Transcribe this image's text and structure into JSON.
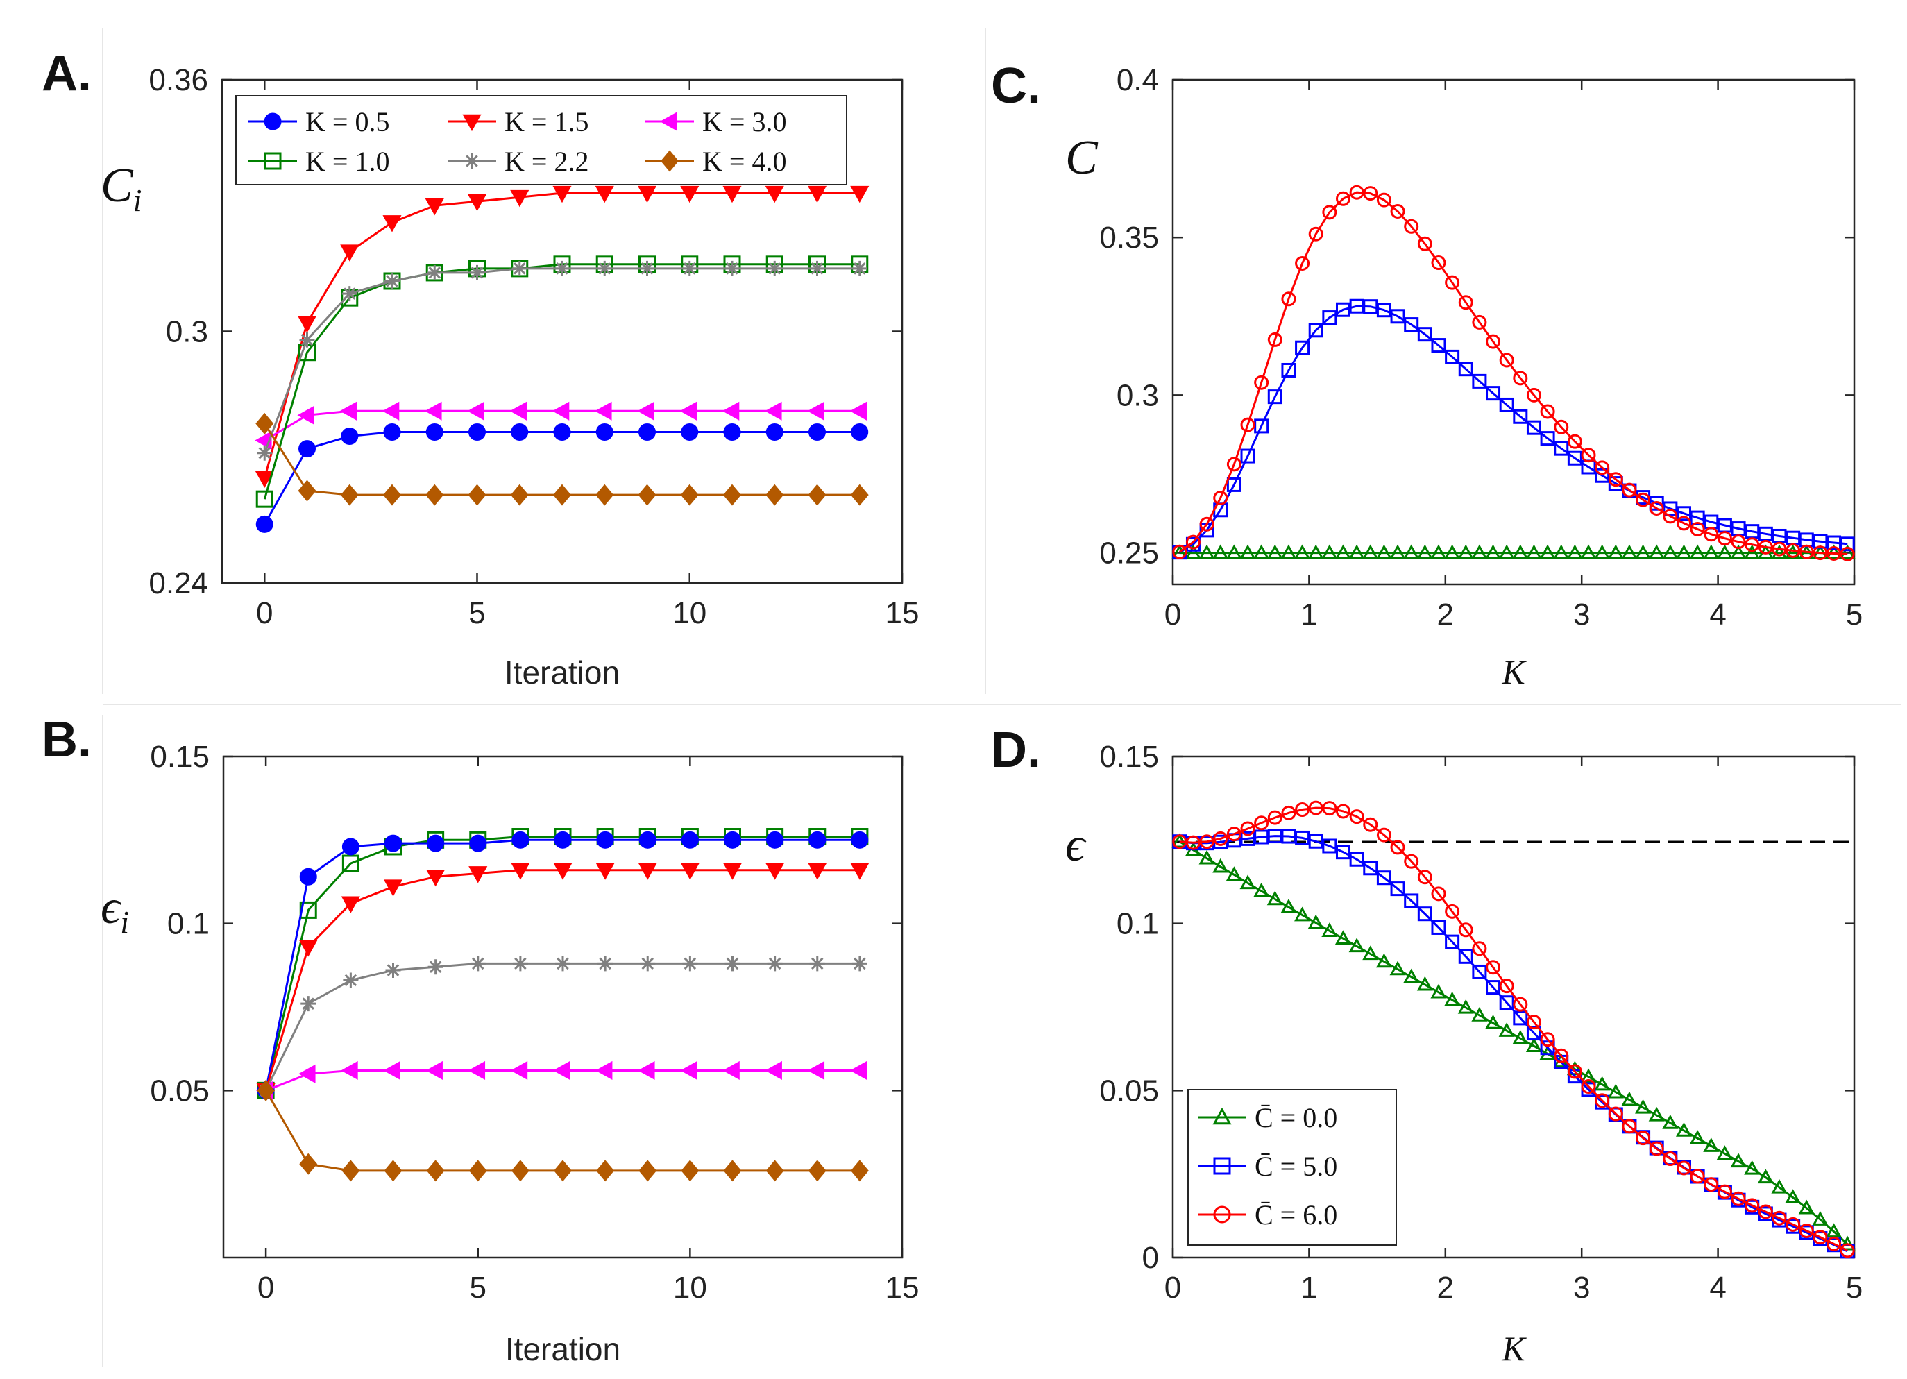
{
  "panels": [
    {
      "letter": "A.",
      "ylabel_base": "C",
      "ylabel_sub": "i",
      "xlabel": "Iteration",
      "xticks": [
        "0",
        "5",
        "10",
        "15"
      ],
      "yticks": [
        "0.24",
        "0.3",
        "0.36"
      ],
      "legend_labels": [
        "K = 0.5",
        "K = 1.5",
        "K = 3.0",
        "K = 1.0",
        "K = 2.2",
        "K = 4.0"
      ]
    },
    {
      "letter": "B.",
      "ylabel_base": "ϵ",
      "ylabel_sub": "i",
      "xlabel": "Iteration",
      "xticks": [
        "0",
        "5",
        "10",
        "15"
      ],
      "yticks": [
        "0.05",
        "0.1",
        "0.15"
      ]
    },
    {
      "letter": "C.",
      "ylabel": "C",
      "xlabel": "K",
      "xticks": [
        "0",
        "1",
        "2",
        "3",
        "4",
        "5"
      ],
      "yticks": [
        "0.25",
        "0.3",
        "0.35",
        "0.4"
      ]
    },
    {
      "letter": "D.",
      "ylabel": "ϵ",
      "xlabel": "K",
      "xticks": [
        "0",
        "1",
        "2",
        "3",
        "4",
        "5"
      ],
      "yticks": [
        "0",
        "0.05",
        "0.1",
        "0.15"
      ],
      "legend_labels": [
        "C̄ = 0.0",
        "C̄ = 5.0",
        "C̄ = 6.0"
      ]
    }
  ],
  "chart_data": [
    {
      "panel": "A",
      "type": "line",
      "xlabel": "Iteration",
      "ylabel": "C_i",
      "xlim": [
        -1,
        15
      ],
      "ylim": [
        0.24,
        0.36
      ],
      "x": [
        0,
        1,
        2,
        3,
        4,
        5,
        6,
        7,
        8,
        9,
        10,
        11,
        12,
        13,
        14
      ],
      "series": [
        {
          "name": "K = 0.5",
          "color": "#0000ff",
          "marker": "circle-filled",
          "values": [
            0.254,
            0.272,
            0.275,
            0.276,
            0.276,
            0.276,
            0.276,
            0.276,
            0.276,
            0.276,
            0.276,
            0.276,
            0.276,
            0.276,
            0.276
          ]
        },
        {
          "name": "K = 1.5",
          "color": "#ff0000",
          "marker": "triangle-down-filled",
          "values": [
            0.265,
            0.302,
            0.319,
            0.326,
            0.33,
            0.331,
            0.332,
            0.333,
            0.333,
            0.333,
            0.333,
            0.333,
            0.333,
            0.333,
            0.333
          ]
        },
        {
          "name": "K = 3.0",
          "color": "#ff00ff",
          "marker": "triangle-left-filled",
          "values": [
            0.274,
            0.28,
            0.281,
            0.281,
            0.281,
            0.281,
            0.281,
            0.281,
            0.281,
            0.281,
            0.281,
            0.281,
            0.281,
            0.281,
            0.281
          ]
        },
        {
          "name": "K = 1.0",
          "color": "#008000",
          "marker": "square-open",
          "values": [
            0.26,
            0.295,
            0.308,
            0.312,
            0.314,
            0.315,
            0.315,
            0.316,
            0.316,
            0.316,
            0.316,
            0.316,
            0.316,
            0.316,
            0.316
          ]
        },
        {
          "name": "K = 2.2",
          "color": "#808080",
          "marker": "star",
          "values": [
            0.271,
            0.298,
            0.309,
            0.312,
            0.314,
            0.314,
            0.315,
            0.315,
            0.315,
            0.315,
            0.315,
            0.315,
            0.315,
            0.315,
            0.315
          ]
        },
        {
          "name": "K = 4.0",
          "color": "#b35900",
          "marker": "diamond-filled",
          "values": [
            0.278,
            0.262,
            0.261,
            0.261,
            0.261,
            0.261,
            0.261,
            0.261,
            0.261,
            0.261,
            0.261,
            0.261,
            0.261,
            0.261,
            0.261
          ]
        }
      ]
    },
    {
      "panel": "B",
      "type": "line",
      "xlabel": "Iteration",
      "ylabel": "ϵ_i",
      "xlim": [
        -1,
        15
      ],
      "ylim": [
        0,
        0.15
      ],
      "x": [
        0,
        1,
        2,
        3,
        4,
        5,
        6,
        7,
        8,
        9,
        10,
        11,
        12,
        13,
        14
      ],
      "series": [
        {
          "name": "K = 1.0",
          "color": "#008000",
          "marker": "square-open",
          "values": [
            0.05,
            0.104,
            0.118,
            0.123,
            0.125,
            0.125,
            0.126,
            0.126,
            0.126,
            0.126,
            0.126,
            0.126,
            0.126,
            0.126,
            0.126
          ]
        },
        {
          "name": "K = 0.5",
          "color": "#0000ff",
          "marker": "circle-filled",
          "values": [
            0.05,
            0.114,
            0.123,
            0.124,
            0.124,
            0.124,
            0.125,
            0.125,
            0.125,
            0.125,
            0.125,
            0.125,
            0.125,
            0.125,
            0.125
          ]
        },
        {
          "name": "K = 1.5",
          "color": "#ff0000",
          "marker": "triangle-down-filled",
          "values": [
            0.05,
            0.093,
            0.106,
            0.111,
            0.114,
            0.115,
            0.116,
            0.116,
            0.116,
            0.116,
            0.116,
            0.116,
            0.116,
            0.116,
            0.116
          ]
        },
        {
          "name": "K = 2.2",
          "color": "#808080",
          "marker": "star",
          "values": [
            0.05,
            0.076,
            0.083,
            0.086,
            0.087,
            0.088,
            0.088,
            0.088,
            0.088,
            0.088,
            0.088,
            0.088,
            0.088,
            0.088,
            0.088
          ]
        },
        {
          "name": "K = 3.0",
          "color": "#ff00ff",
          "marker": "triangle-left-filled",
          "values": [
            0.05,
            0.055,
            0.056,
            0.056,
            0.056,
            0.056,
            0.056,
            0.056,
            0.056,
            0.056,
            0.056,
            0.056,
            0.056,
            0.056,
            0.056
          ]
        },
        {
          "name": "K = 4.0",
          "color": "#b35900",
          "marker": "diamond-filled",
          "values": [
            0.05,
            0.028,
            0.026,
            0.026,
            0.026,
            0.026,
            0.026,
            0.026,
            0.026,
            0.026,
            0.026,
            0.026,
            0.026,
            0.026,
            0.026
          ]
        }
      ]
    },
    {
      "panel": "C",
      "type": "line",
      "xlabel": "K",
      "ylabel": "C",
      "xlim": [
        0,
        5
      ],
      "ylim": [
        0.24,
        0.4
      ],
      "x_start": 0.05,
      "x_step": 0.1,
      "n_points": 50,
      "series": [
        {
          "name": "C̄ = 0.0",
          "color": "#008000",
          "marker": "triangle-up-open",
          "values": [
            0.25,
            0.25,
            0.25,
            0.25,
            0.25,
            0.25,
            0.25,
            0.25,
            0.25,
            0.25,
            0.25,
            0.25,
            0.25,
            0.25,
            0.25,
            0.25,
            0.25,
            0.25,
            0.25,
            0.25,
            0.25,
            0.25,
            0.25,
            0.25,
            0.25,
            0.25,
            0.25,
            0.25,
            0.25,
            0.25,
            0.25,
            0.25,
            0.25,
            0.25,
            0.25,
            0.25,
            0.25,
            0.25,
            0.25,
            0.25,
            0.25,
            0.25,
            0.25,
            0.25,
            0.25,
            0.25,
            0.25,
            0.25,
            0.25,
            0.25
          ]
        },
        {
          "name": "C̄ = 5.0",
          "color": "#0000ff",
          "marker": "square-open",
          "values": [
            0.2502,
            0.2527,
            0.2572,
            0.2636,
            0.2716,
            0.2807,
            0.2902,
            0.2995,
            0.3079,
            0.315,
            0.3206,
            0.3246,
            0.3271,
            0.3282,
            0.3281,
            0.327,
            0.325,
            0.3224,
            0.3193,
            0.3158,
            0.3121,
            0.3083,
            0.3044,
            0.3006,
            0.2969,
            0.2932,
            0.2897,
            0.2863,
            0.2831,
            0.28,
            0.2772,
            0.2745,
            0.272,
            0.2697,
            0.2676,
            0.2657,
            0.264,
            0.2625,
            0.2611,
            0.2598,
            0.2587,
            0.2577,
            0.2568,
            0.256,
            0.2553,
            0.2547,
            0.2541,
            0.2536,
            0.2532,
            0.2528
          ]
        },
        {
          "name": "C̄ = 6.0",
          "color": "#ff0000",
          "marker": "circle-open",
          "values": [
            0.2503,
            0.2534,
            0.2591,
            0.2674,
            0.2781,
            0.2906,
            0.304,
            0.3176,
            0.3305,
            0.3418,
            0.3511,
            0.358,
            0.3623,
            0.3643,
            0.364,
            0.3619,
            0.3583,
            0.3535,
            0.348,
            0.342,
            0.3357,
            0.3294,
            0.3231,
            0.317,
            0.3111,
            0.3054,
            0.3,
            0.2948,
            0.2899,
            0.2853,
            0.281,
            0.277,
            0.2733,
            0.2699,
            0.2668,
            0.2641,
            0.2616,
            0.2594,
            0.2575,
            0.2559,
            0.2546,
            0.2535,
            0.2526,
            0.2518,
            0.2512,
            0.2507,
            0.2503,
            0.25,
            0.2498,
            0.2496
          ]
        }
      ]
    },
    {
      "panel": "D",
      "type": "line",
      "xlabel": "K",
      "ylabel": "ϵ",
      "xlim": [
        0,
        5
      ],
      "ylim": [
        0,
        0.15
      ],
      "x_start": 0.05,
      "x_step": 0.1,
      "n_points": 50,
      "reference_line": {
        "y": 0.1245,
        "style": "dashed",
        "color": "#000000"
      },
      "legend_position": "bottom-left",
      "series": [
        {
          "name": "C̄ = 0.0",
          "color": "#008000",
          "marker": "triangle-up-open",
          "values": [
            0.1245,
            0.122,
            0.1195,
            0.117,
            0.1146,
            0.1121,
            0.1097,
            0.1073,
            0.1049,
            0.1025,
            0.1002,
            0.0978,
            0.0955,
            0.0932,
            0.0909,
            0.0886,
            0.0863,
            0.084,
            0.0817,
            0.0794,
            0.0771,
            0.0748,
            0.0725,
            0.0702,
            0.0679,
            0.0656,
            0.0633,
            0.061,
            0.0587,
            0.0564,
            0.0541,
            0.0518,
            0.0495,
            0.0472,
            0.0449,
            0.0426,
            0.0403,
            0.038,
            0.0357,
            0.0334,
            0.0311,
            0.0288,
            0.0266,
            0.024,
            0.021,
            0.018,
            0.0148,
            0.0114,
            0.0078,
            0.004
          ]
        },
        {
          "name": "C̄ = 5.0",
          "color": "#0000ff",
          "marker": "square-open",
          "values": [
            0.1245,
            0.1241,
            0.1241,
            0.1244,
            0.1249,
            0.1254,
            0.1259,
            0.1262,
            0.1261,
            0.1256,
            0.1246,
            0.1232,
            0.1214,
            0.1192,
            0.1166,
            0.1137,
            0.1104,
            0.1068,
            0.1029,
            0.0988,
            0.0945,
            0.0901,
            0.0855,
            0.0809,
            0.0763,
            0.0717,
            0.0672,
            0.0628,
            0.0585,
            0.0543,
            0.0503,
            0.0465,
            0.0428,
            0.0393,
            0.036,
            0.0328,
            0.0298,
            0.027,
            0.0243,
            0.0218,
            0.0195,
            0.0172,
            0.0151,
            0.0131,
            0.0112,
            0.0093,
            0.0075,
            0.0057,
            0.0038,
            0.0019
          ]
        },
        {
          "name": "C̄ = 6.0",
          "color": "#ff0000",
          "marker": "circle-open",
          "values": [
            0.1245,
            0.1242,
            0.1245,
            0.1254,
            0.1268,
            0.1284,
            0.1301,
            0.1317,
            0.1331,
            0.1341,
            0.1346,
            0.1345,
            0.1336,
            0.132,
            0.1296,
            0.1265,
            0.1228,
            0.1186,
            0.1139,
            0.1089,
            0.1036,
            0.0981,
            0.0925,
            0.0869,
            0.0813,
            0.0758,
            0.0705,
            0.0653,
            0.0604,
            0.0557,
            0.0512,
            0.047,
            0.043,
            0.0393,
            0.0358,
            0.0326,
            0.0296,
            0.0268,
            0.0243,
            0.0219,
            0.0197,
            0.0176,
            0.0156,
            0.0137,
            0.0118,
            0.0099,
            0.008,
            0.0061,
            0.0041,
            0.0021
          ]
        }
      ]
    }
  ]
}
